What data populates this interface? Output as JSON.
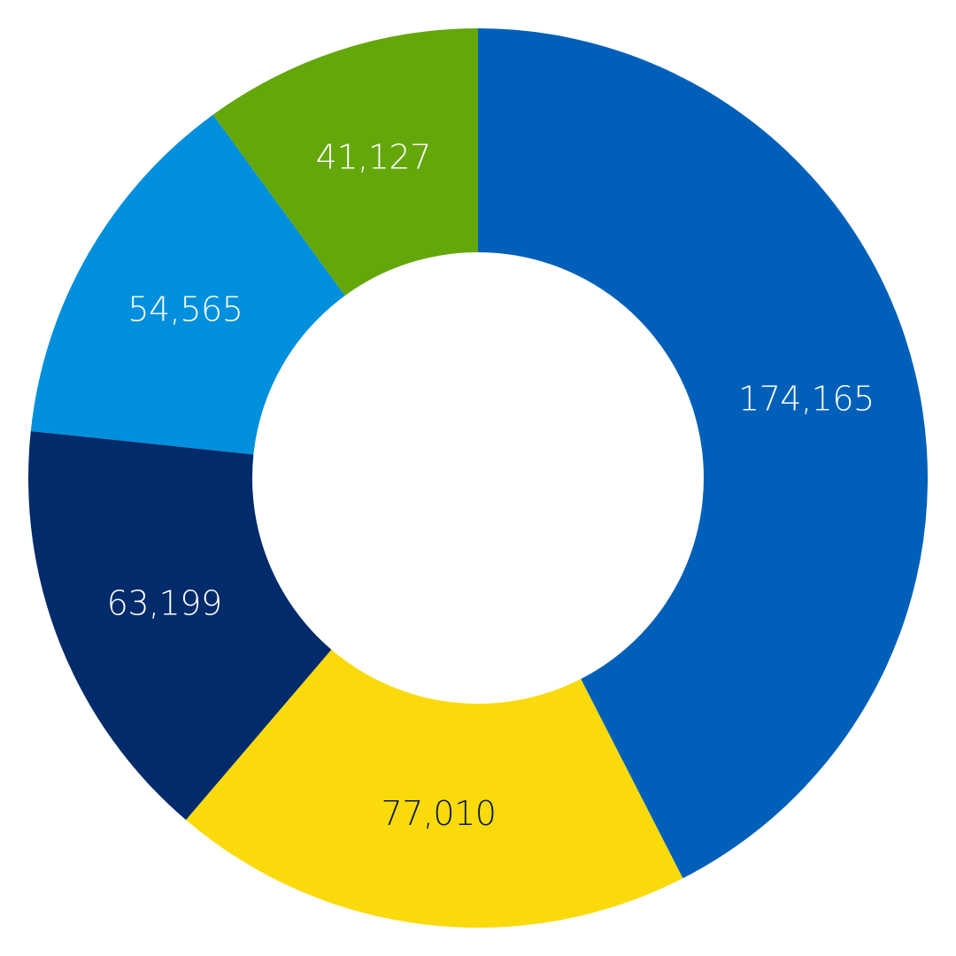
{
  "chart_data": {
    "type": "pie",
    "variant": "donut",
    "title": "",
    "start": "12 o'clock",
    "direction": "clockwise",
    "slices": [
      {
        "value": 174165,
        "label": "174,165",
        "color": "#0060B9",
        "label_color": "#ffffff"
      },
      {
        "value": 77010,
        "label": "77,010",
        "color": "#FBDA0C",
        "label_color": "#0b1a3a"
      },
      {
        "value": 63199,
        "label": "63,199",
        "color": "#012B6A",
        "label_color": "#ffffff"
      },
      {
        "value": 54565,
        "label": "54,565",
        "color": "#008FDC",
        "label_color": "#ffffff"
      },
      {
        "value": 41127,
        "label": "41,127",
        "color": "#64A70B",
        "label_color": "#ffffff"
      }
    ]
  }
}
